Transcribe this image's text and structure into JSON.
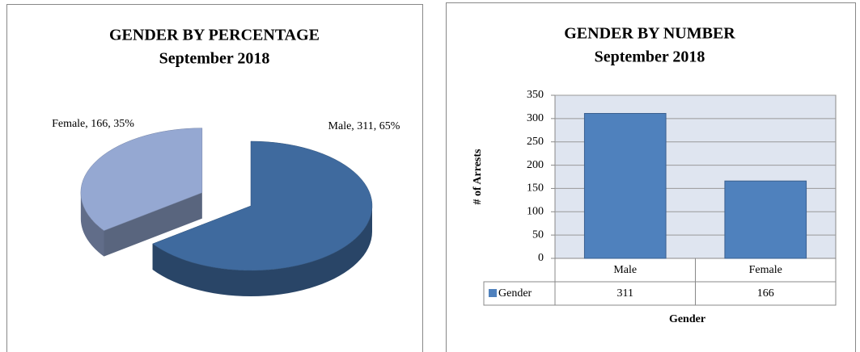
{
  "chart_data": [
    {
      "type": "pie",
      "title": "GENDER BY PERCENTAGE",
      "subtitle": "September 2018",
      "categories": [
        "Male",
        "Female"
      ],
      "values": [
        65,
        35
      ],
      "value_labels": [
        "Male, 311, 65%",
        "Female, 166, 35%"
      ],
      "colors": [
        "#3f6a9e",
        "#95a8d2"
      ]
    },
    {
      "type": "bar",
      "title": "GENDER BY NUMBER",
      "subtitle": "September 2018",
      "categories": [
        "Male",
        "Female"
      ],
      "series": [
        {
          "name": "Gender",
          "color": "#4f81bd",
          "values": [
            311,
            166
          ]
        }
      ],
      "ylim": [
        0,
        350
      ],
      "yticks": [
        0,
        50,
        100,
        150,
        200,
        250,
        300,
        350
      ],
      "y_label": "# of Arrests",
      "x_label": "Gender",
      "grid": true,
      "data_table": true
    }
  ]
}
